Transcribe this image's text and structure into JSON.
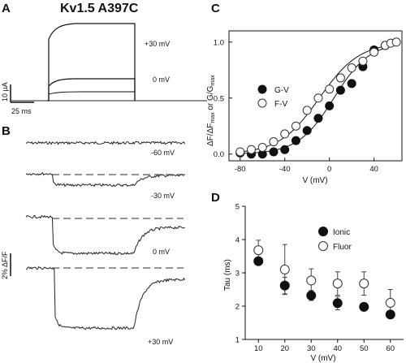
{
  "figure": {
    "title": "Kv1.5 A397C",
    "panel_labels": {
      "A": "A",
      "B": "B",
      "C": "C",
      "D": "D"
    },
    "scale_a": {
      "current": "10 µA",
      "time": "25 ms"
    },
    "scale_b": {
      "fluor": "2% ΔF/F"
    },
    "trace_labels_a": [
      "+30 mV",
      "0 mV"
    ],
    "trace_labels_b": [
      "-60 mV",
      "-30 mV",
      "0 mV",
      "+30 mV"
    ]
  },
  "chart_data": [
    {
      "panel": "C",
      "type": "scatter",
      "xlabel": "V (mV)",
      "ylabel": "ΔF/ΔFmax or G/Gmax",
      "ylabel_parts": {
        "a": "ΔF/ΔF",
        "a_sub": "max",
        "b": " or G/G",
        "b_sub": "max"
      },
      "xlim": [
        -90,
        65
      ],
      "ylim": [
        -0.06,
        1.1
      ],
      "xticks": [
        -80,
        -40,
        0,
        40
      ],
      "yticks": [
        0.0,
        0.5,
        1.0
      ],
      "ytick_labels": [
        "0.0",
        "0.5",
        "1.0"
      ],
      "legend_position": "left-middle",
      "series": [
        {
          "name": "G-V",
          "marker": "filled",
          "x": [
            -80,
            -70,
            -60,
            -50,
            -40,
            -30,
            -20,
            -10,
            0,
            10,
            20,
            30,
            40,
            50
          ],
          "y": [
            0.01,
            0.0,
            0.0,
            0.02,
            0.04,
            0.12,
            0.21,
            0.32,
            0.43,
            0.57,
            0.63,
            0.78,
            0.93,
            0.97
          ]
        },
        {
          "name": "F-V",
          "marker": "open",
          "x": [
            -80,
            -70,
            -60,
            -50,
            -40,
            -30,
            -20,
            -10,
            0,
            10,
            20,
            30,
            40,
            50,
            55,
            60
          ],
          "y": [
            0.02,
            0.04,
            0.06,
            0.11,
            0.18,
            0.25,
            0.39,
            0.5,
            0.58,
            0.68,
            0.77,
            0.83,
            0.91,
            0.97,
            0.99,
            1.0
          ]
        }
      ],
      "fit_curves": [
        {
          "series": "G-V",
          "v_half": 4,
          "slope": 16
        },
        {
          "series": "F-V",
          "v_half": -9,
          "slope": 18
        }
      ]
    },
    {
      "panel": "D",
      "type": "scatter",
      "xlabel": "V (mV)",
      "ylabel": "Tau (ms)",
      "xlim": [
        5,
        65
      ],
      "ylim": [
        1,
        5
      ],
      "xticks": [
        10,
        20,
        30,
        40,
        50,
        60
      ],
      "yticks": [
        1,
        2,
        3,
        4,
        5
      ],
      "legend_position": "top-right",
      "series": [
        {
          "name": "Ionic",
          "marker": "filled",
          "x": [
            10,
            20,
            30,
            40,
            50,
            60
          ],
          "y": [
            3.35,
            2.62,
            2.32,
            2.09,
            1.98,
            1.75
          ],
          "err": [
            0.1,
            0.25,
            0.15,
            0.2,
            0.12,
            0.08
          ]
        },
        {
          "name": "Fluor",
          "marker": "open",
          "x": [
            10,
            20,
            30,
            40,
            50,
            60
          ],
          "y": [
            3.68,
            3.1,
            2.77,
            2.68,
            2.68,
            2.1
          ],
          "err": [
            0.3,
            0.75,
            0.35,
            0.35,
            0.35,
            0.4
          ]
        }
      ]
    }
  ]
}
